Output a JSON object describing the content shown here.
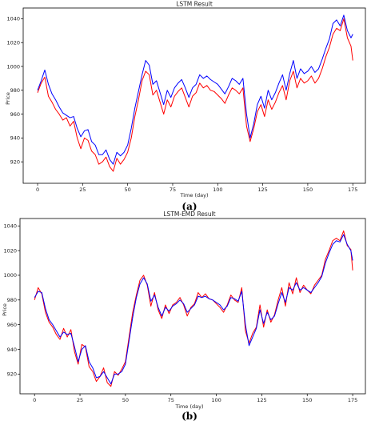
{
  "chart_data": [
    {
      "type": "line",
      "panel_label": "(a)",
      "title": "LSTM Result",
      "xlabel": "Time (day)",
      "ylabel": "Price",
      "xlim": [
        -8,
        182
      ],
      "ylim": [
        902,
        1049
      ],
      "xticks": [
        0,
        25,
        50,
        75,
        100,
        125,
        150,
        175
      ],
      "yticks": [
        920,
        940,
        960,
        980,
        1000,
        1020,
        1040
      ],
      "grid": false,
      "series": [
        {
          "color": "#ff0000",
          "x": [
            0,
            2,
            4,
            6,
            8,
            10,
            12,
            14,
            16,
            18,
            20,
            22,
            24,
            26,
            28,
            30,
            32,
            34,
            36,
            38,
            40,
            42,
            44,
            46,
            48,
            50,
            52,
            54,
            56,
            58,
            60,
            62,
            64,
            66,
            68,
            70,
            72,
            74,
            76,
            78,
            80,
            82,
            84,
            86,
            88,
            90,
            92,
            94,
            96,
            98,
            100,
            102,
            104,
            106,
            108,
            110,
            112,
            114,
            116,
            118,
            120,
            122,
            124,
            126,
            128,
            130,
            132,
            134,
            136,
            138,
            140,
            142,
            144,
            146,
            148,
            150,
            152,
            154,
            156,
            158,
            160,
            162,
            164,
            166,
            168,
            170,
            172,
            174,
            175
          ],
          "values": [
            978,
            986,
            991,
            975,
            970,
            964,
            960,
            955,
            957,
            950,
            954,
            940,
            931,
            940,
            938,
            929,
            926,
            918,
            920,
            924,
            916,
            912,
            923,
            918,
            922,
            928,
            940,
            958,
            972,
            988,
            996,
            993,
            976,
            980,
            970,
            960,
            972,
            966,
            975,
            979,
            982,
            974,
            966,
            975,
            978,
            986,
            982,
            984,
            980,
            979,
            976,
            973,
            969,
            976,
            982,
            980,
            977,
            982,
            950,
            937,
            948,
            962,
            968,
            958,
            972,
            964,
            970,
            978,
            984,
            972,
            988,
            996,
            982,
            990,
            986,
            988,
            992,
            986,
            990,
            998,
            1008,
            1016,
            1027,
            1032,
            1030,
            1040,
            1024,
            1017,
            1005
          ]
        },
        {
          "color": "#0000ff",
          "x": [
            0,
            2,
            4,
            6,
            8,
            10,
            12,
            14,
            16,
            18,
            20,
            22,
            24,
            26,
            28,
            30,
            32,
            34,
            36,
            38,
            40,
            42,
            44,
            46,
            48,
            50,
            52,
            54,
            56,
            58,
            60,
            62,
            64,
            66,
            68,
            70,
            72,
            74,
            76,
            78,
            80,
            82,
            84,
            86,
            88,
            90,
            92,
            94,
            96,
            98,
            100,
            102,
            104,
            106,
            108,
            110,
            112,
            114,
            116,
            118,
            120,
            122,
            124,
            126,
            128,
            130,
            132,
            134,
            136,
            138,
            140,
            142,
            144,
            146,
            148,
            150,
            152,
            154,
            156,
            158,
            160,
            162,
            164,
            166,
            168,
            170,
            172,
            174,
            175
          ],
          "values": [
            980,
            988,
            997,
            985,
            977,
            972,
            966,
            961,
            959,
            957,
            958,
            948,
            941,
            946,
            947,
            937,
            934,
            926,
            926,
            930,
            922,
            918,
            928,
            925,
            928,
            934,
            948,
            965,
            979,
            993,
            1005,
            1001,
            985,
            988,
            978,
            968,
            980,
            974,
            982,
            986,
            989,
            982,
            974,
            982,
            985,
            993,
            990,
            992,
            989,
            987,
            985,
            981,
            977,
            983,
            990,
            988,
            985,
            990,
            960,
            940,
            952,
            968,
            975,
            965,
            980,
            972,
            978,
            986,
            993,
            980,
            994,
            1005,
            990,
            998,
            994,
            996,
            1000,
            995,
            998,
            1006,
            1015,
            1023,
            1036,
            1039,
            1034,
            1043,
            1030,
            1024,
            1027
          ]
        }
      ]
    },
    {
      "type": "line",
      "panel_label": "(b)",
      "title": "LSTM-EMD Result",
      "xlabel": "Time (day)",
      "ylabel": "Price",
      "xlim": [
        -8,
        182
      ],
      "ylim": [
        904,
        1046
      ],
      "xticks": [
        0,
        25,
        50,
        75,
        100,
        125,
        150,
        175
      ],
      "yticks": [
        920,
        940,
        960,
        980,
        1000,
        1020,
        1040
      ],
      "grid": false,
      "series": [
        {
          "color": "#ff0000",
          "x": [
            0,
            2,
            4,
            6,
            8,
            10,
            12,
            14,
            16,
            18,
            20,
            22,
            24,
            26,
            28,
            30,
            32,
            34,
            36,
            38,
            40,
            42,
            44,
            46,
            48,
            50,
            52,
            54,
            56,
            58,
            60,
            62,
            64,
            66,
            68,
            70,
            72,
            74,
            76,
            78,
            80,
            82,
            84,
            86,
            88,
            90,
            92,
            94,
            96,
            98,
            100,
            102,
            104,
            106,
            108,
            110,
            112,
            114,
            116,
            118,
            120,
            122,
            124,
            126,
            128,
            130,
            132,
            134,
            136,
            138,
            140,
            142,
            144,
            146,
            148,
            150,
            152,
            154,
            156,
            158,
            160,
            162,
            164,
            166,
            168,
            170,
            172,
            174,
            175
          ],
          "values": [
            980,
            990,
            985,
            970,
            962,
            958,
            952,
            948,
            957,
            950,
            956,
            938,
            928,
            944,
            942,
            926,
            922,
            914,
            918,
            925,
            913,
            910,
            922,
            919,
            924,
            930,
            950,
            970,
            984,
            996,
            1000,
            992,
            975,
            986,
            972,
            965,
            976,
            969,
            976,
            978,
            982,
            976,
            967,
            974,
            977,
            986,
            982,
            985,
            981,
            980,
            977,
            974,
            970,
            976,
            984,
            980,
            978,
            990,
            955,
            945,
            953,
            958,
            976,
            958,
            972,
            962,
            968,
            980,
            990,
            975,
            994,
            985,
            998,
            986,
            992,
            988,
            985,
            992,
            996,
            1000,
            1013,
            1020,
            1028,
            1030,
            1028,
            1036,
            1024,
            1021,
            1004
          ]
        },
        {
          "color": "#0000ff",
          "x": [
            0,
            2,
            4,
            6,
            8,
            10,
            12,
            14,
            16,
            18,
            20,
            22,
            24,
            26,
            28,
            30,
            32,
            34,
            36,
            38,
            40,
            42,
            44,
            46,
            48,
            50,
            52,
            54,
            56,
            58,
            60,
            62,
            64,
            66,
            68,
            70,
            72,
            74,
            76,
            78,
            80,
            82,
            84,
            86,
            88,
            90,
            92,
            94,
            96,
            98,
            100,
            102,
            104,
            106,
            108,
            110,
            112,
            114,
            116,
            118,
            120,
            122,
            124,
            126,
            128,
            130,
            132,
            134,
            136,
            138,
            140,
            142,
            144,
            146,
            148,
            150,
            152,
            154,
            156,
            158,
            160,
            162,
            164,
            166,
            168,
            170,
            172,
            174,
            175
          ],
          "values": [
            982,
            987,
            986,
            973,
            964,
            960,
            955,
            950,
            954,
            952,
            953,
            942,
            930,
            940,
            943,
            930,
            925,
            917,
            918,
            922,
            917,
            912,
            920,
            920,
            922,
            928,
            947,
            966,
            982,
            993,
            998,
            993,
            979,
            984,
            974,
            967,
            974,
            971,
            975,
            977,
            980,
            977,
            970,
            973,
            976,
            983,
            982,
            983,
            981,
            980,
            978,
            976,
            972,
            975,
            982,
            981,
            979,
            987,
            960,
            943,
            950,
            957,
            972,
            961,
            970,
            964,
            967,
            977,
            986,
            978,
            990,
            988,
            994,
            988,
            990,
            988,
            986,
            990,
            994,
            999,
            1010,
            1018,
            1025,
            1028,
            1027,
            1033,
            1025,
            1020,
            1012
          ]
        }
      ]
    }
  ]
}
